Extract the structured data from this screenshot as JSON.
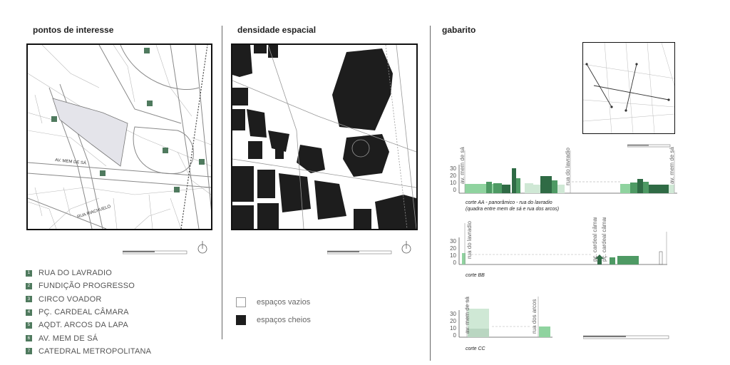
{
  "sections": {
    "poi_title": "pontos de interesse",
    "density_title": "densidade espacial",
    "gabarito_title": "gabarito"
  },
  "poi_map": {
    "street_labels": [
      "AV. MEM DE SÁ",
      "RUA RIACHUELO"
    ]
  },
  "poi_legend": [
    {
      "num": "1",
      "label": "RUA DO LAVRADIO"
    },
    {
      "num": "2",
      "label": "FUNDIÇÃO PROGRESSO"
    },
    {
      "num": "3",
      "label": "CIRCO VOADOR"
    },
    {
      "num": "4",
      "label": "PÇ. CARDEAL CÂMARA"
    },
    {
      "num": "5",
      "label": "AQDT. ARCOS DA LAPA"
    },
    {
      "num": "6",
      "label": "AV. MEM DE SÁ"
    },
    {
      "num": "7",
      "label": "CATEDRAL METROPOLITANA"
    }
  ],
  "density_legend": [
    {
      "label": "espaços vazios",
      "swatch": "#ffffff"
    },
    {
      "label": "espaços cheios",
      "swatch": "#1d1d1d"
    }
  ],
  "colors": {
    "dark_green": "#2f6b45",
    "mid_green": "#4e9a64",
    "light_green": "#8fd39f",
    "pale_green": "#cfe8d5",
    "building_black": "#1d1d1d",
    "poi_marker": "#4f7a5e"
  },
  "chart_data": [
    {
      "type": "bar",
      "caption": "corte AA - panorâmico - rua do lavradio",
      "caption_note": "(quadra entre mem de sá e rua dos arcos)",
      "y_ticks": [
        0,
        10,
        20,
        30
      ],
      "ylim": [
        0,
        35
      ],
      "vertical_labels": [
        "av. mem de sá",
        "rua do lavradio",
        "av. mem de sá"
      ]
    },
    {
      "type": "bar",
      "caption": "corte BB",
      "y_ticks": [
        0,
        10,
        20,
        30
      ],
      "ylim": [
        0,
        35
      ],
      "vertical_labels": [
        "rua do lavradio",
        "pç. cardeal câmara",
        "pç. cardeal câmara"
      ]
    },
    {
      "type": "bar",
      "caption": "corte CC",
      "y_ticks": [
        0,
        10,
        20,
        30
      ],
      "ylim": [
        0,
        35
      ],
      "vertical_labels": [
        "av. mem de sá",
        "rua dos arcos"
      ]
    }
  ]
}
